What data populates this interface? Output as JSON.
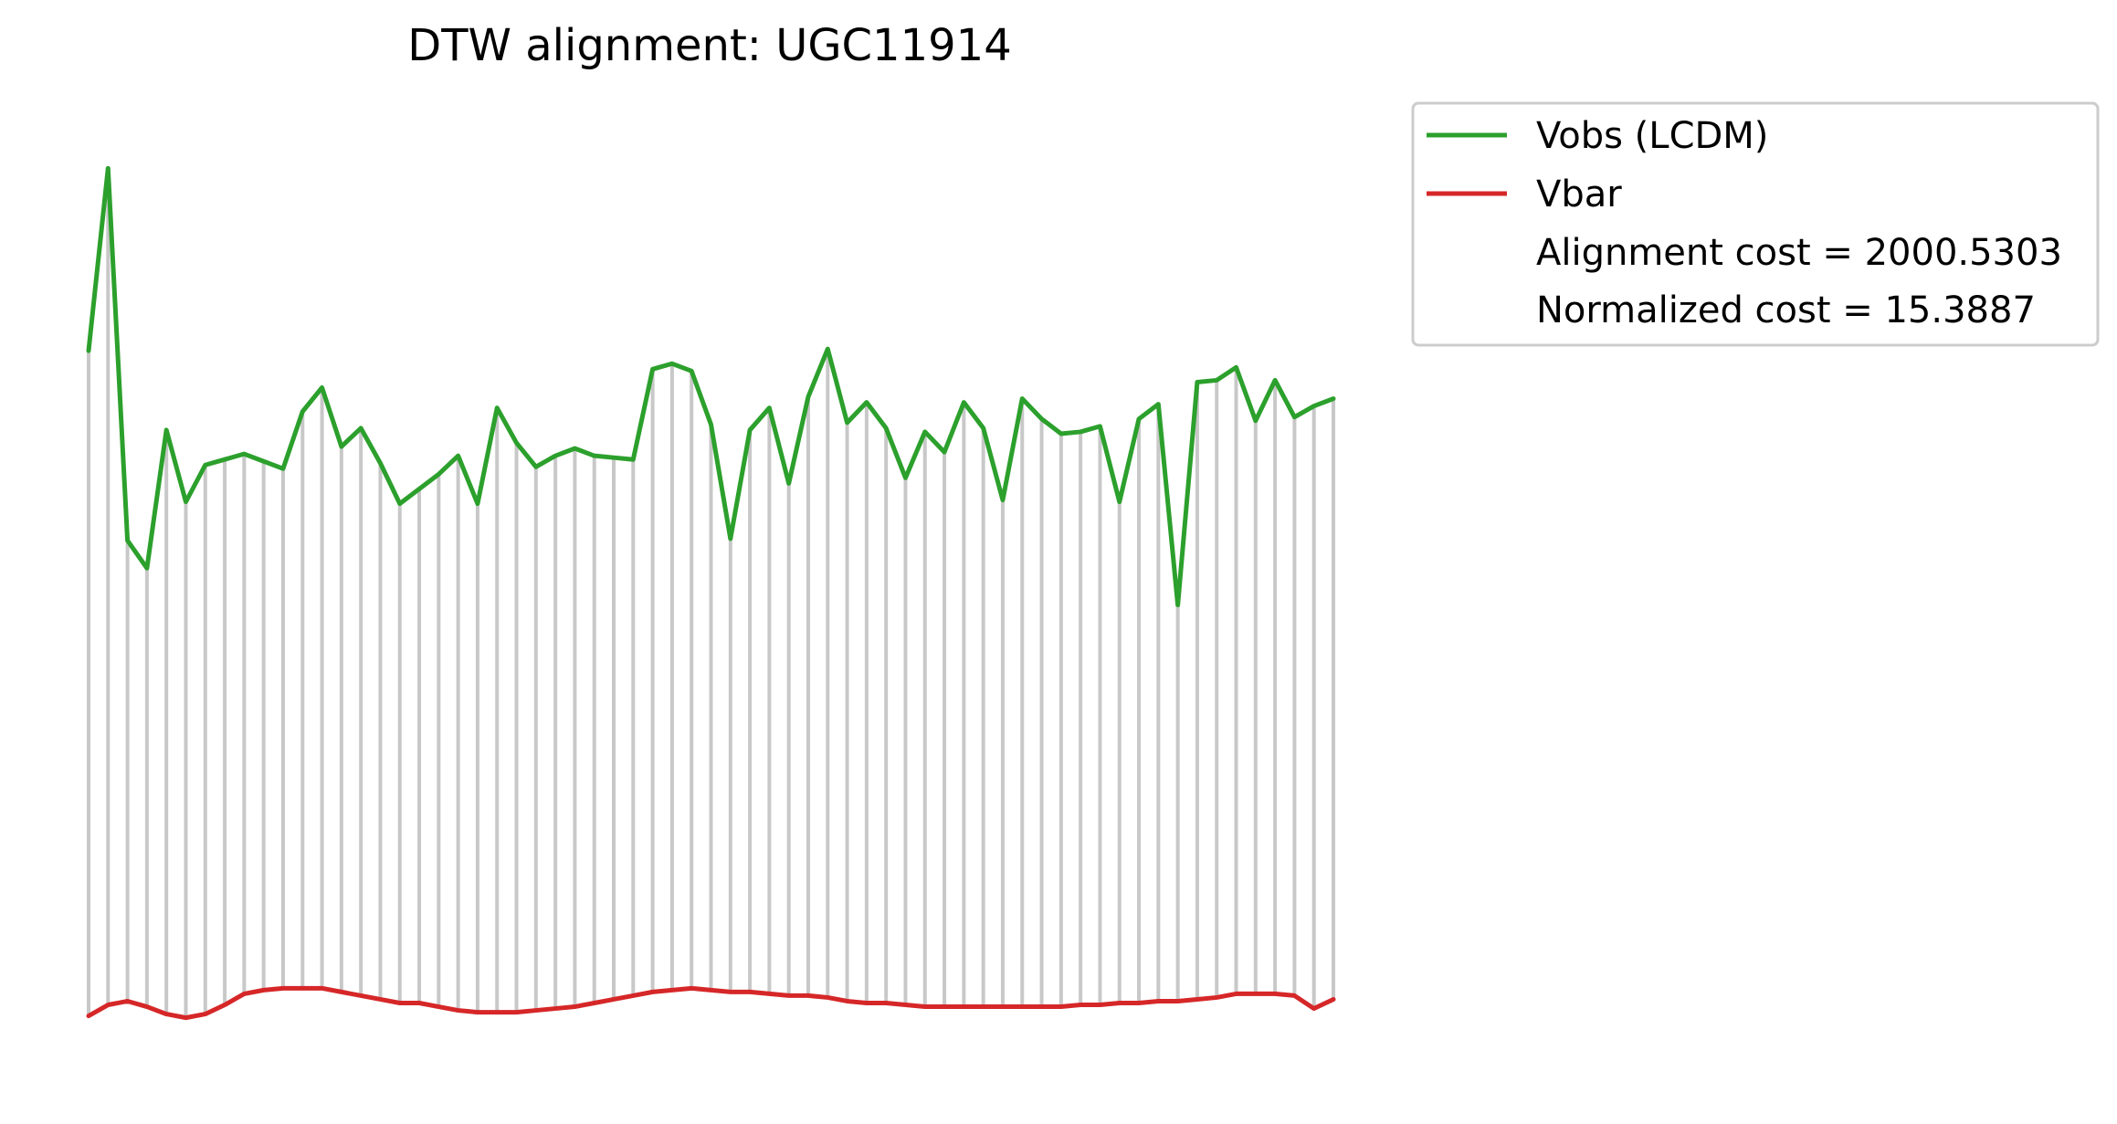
{
  "chart_data": {
    "type": "line",
    "title": "DTW alignment: UGC11914",
    "xlabel": "",
    "ylabel": "",
    "axes_visible": false,
    "grid": false,
    "legend_placement": "outside-top-right",
    "ylim": [
      1.9,
      52.1
    ],
    "series": [
      {
        "name": "Vobs (LCDM)",
        "color": "#2ca02c",
        "values": [
          40.1,
          50.0,
          29.8,
          28.3,
          35.8,
          31.9,
          33.9,
          34.2,
          34.5,
          34.1,
          33.7,
          36.8,
          38.1,
          34.9,
          35.9,
          34.0,
          31.8,
          32.6,
          33.4,
          34.4,
          31.8,
          37.0,
          35.1,
          33.8,
          34.4,
          34.8,
          34.4,
          34.3,
          34.2,
          39.1,
          39.4,
          39.0,
          36.1,
          29.9,
          35.8,
          37.0,
          32.9,
          37.6,
          40.2,
          36.2,
          37.3,
          35.9,
          33.2,
          35.7,
          34.6,
          37.3,
          35.9,
          32.0,
          37.5,
          36.4,
          35.6,
          35.7,
          36.0,
          31.9,
          36.4,
          37.2,
          26.3,
          38.4,
          38.5,
          39.2,
          36.3,
          38.5,
          36.5,
          37.1,
          37.5
        ],
        "connections": [
          1,
          2,
          3,
          4,
          5,
          6,
          7,
          8,
          9,
          10,
          11,
          12,
          13,
          14,
          15,
          16,
          17,
          18,
          19,
          20,
          21,
          22,
          23,
          24,
          25,
          26,
          27,
          28,
          29,
          30,
          31,
          32,
          33,
          34,
          35,
          36,
          37,
          38,
          39,
          40,
          41,
          42,
          43,
          44,
          45,
          46,
          47,
          48,
          49,
          50,
          51,
          52,
          53,
          54,
          55,
          56,
          57,
          58,
          59,
          60,
          61,
          62,
          63,
          64,
          65
        ]
      },
      {
        "name": "Vbar",
        "color": "#d62728",
        "values": [
          4.0,
          4.6,
          4.8,
          4.5,
          4.1,
          3.9,
          4.1,
          4.6,
          5.2,
          5.4,
          5.5,
          5.5,
          5.5,
          5.3,
          5.1,
          4.9,
          4.7,
          4.7,
          4.5,
          4.3,
          4.2,
          4.2,
          4.2,
          4.3,
          4.4,
          4.5,
          4.7,
          4.9,
          5.1,
          5.3,
          5.4,
          5.5,
          5.4,
          5.3,
          5.3,
          5.2,
          5.1,
          5.1,
          5.0,
          4.8,
          4.7,
          4.7,
          4.6,
          4.5,
          4.5,
          4.5,
          4.5,
          4.5,
          4.5,
          4.5,
          4.5,
          4.6,
          4.6,
          4.7,
          4.7,
          4.8,
          4.8,
          4.9,
          5.0,
          5.2,
          5.2,
          5.2,
          5.1,
          4.4,
          4.9
        ],
        "connections": [
          1,
          2,
          3,
          4,
          5,
          6,
          7,
          8,
          9,
          10,
          11,
          12,
          13,
          14,
          15,
          16,
          17,
          18,
          19,
          20,
          21,
          22,
          23,
          24,
          25,
          26,
          27,
          28,
          29,
          30,
          31,
          32,
          33,
          34,
          35,
          36,
          37,
          38,
          39,
          40,
          41,
          42,
          43,
          44,
          45,
          46,
          47,
          48,
          49,
          50,
          51,
          52,
          53,
          54,
          55,
          56,
          57,
          58,
          59,
          60,
          61,
          62,
          63,
          64,
          65
        ]
      }
    ],
    "connection_color": "#c8c8c8",
    "annotations": [
      "Alignment cost = 2000.5303",
      "Normalized cost = 15.3887"
    ]
  }
}
